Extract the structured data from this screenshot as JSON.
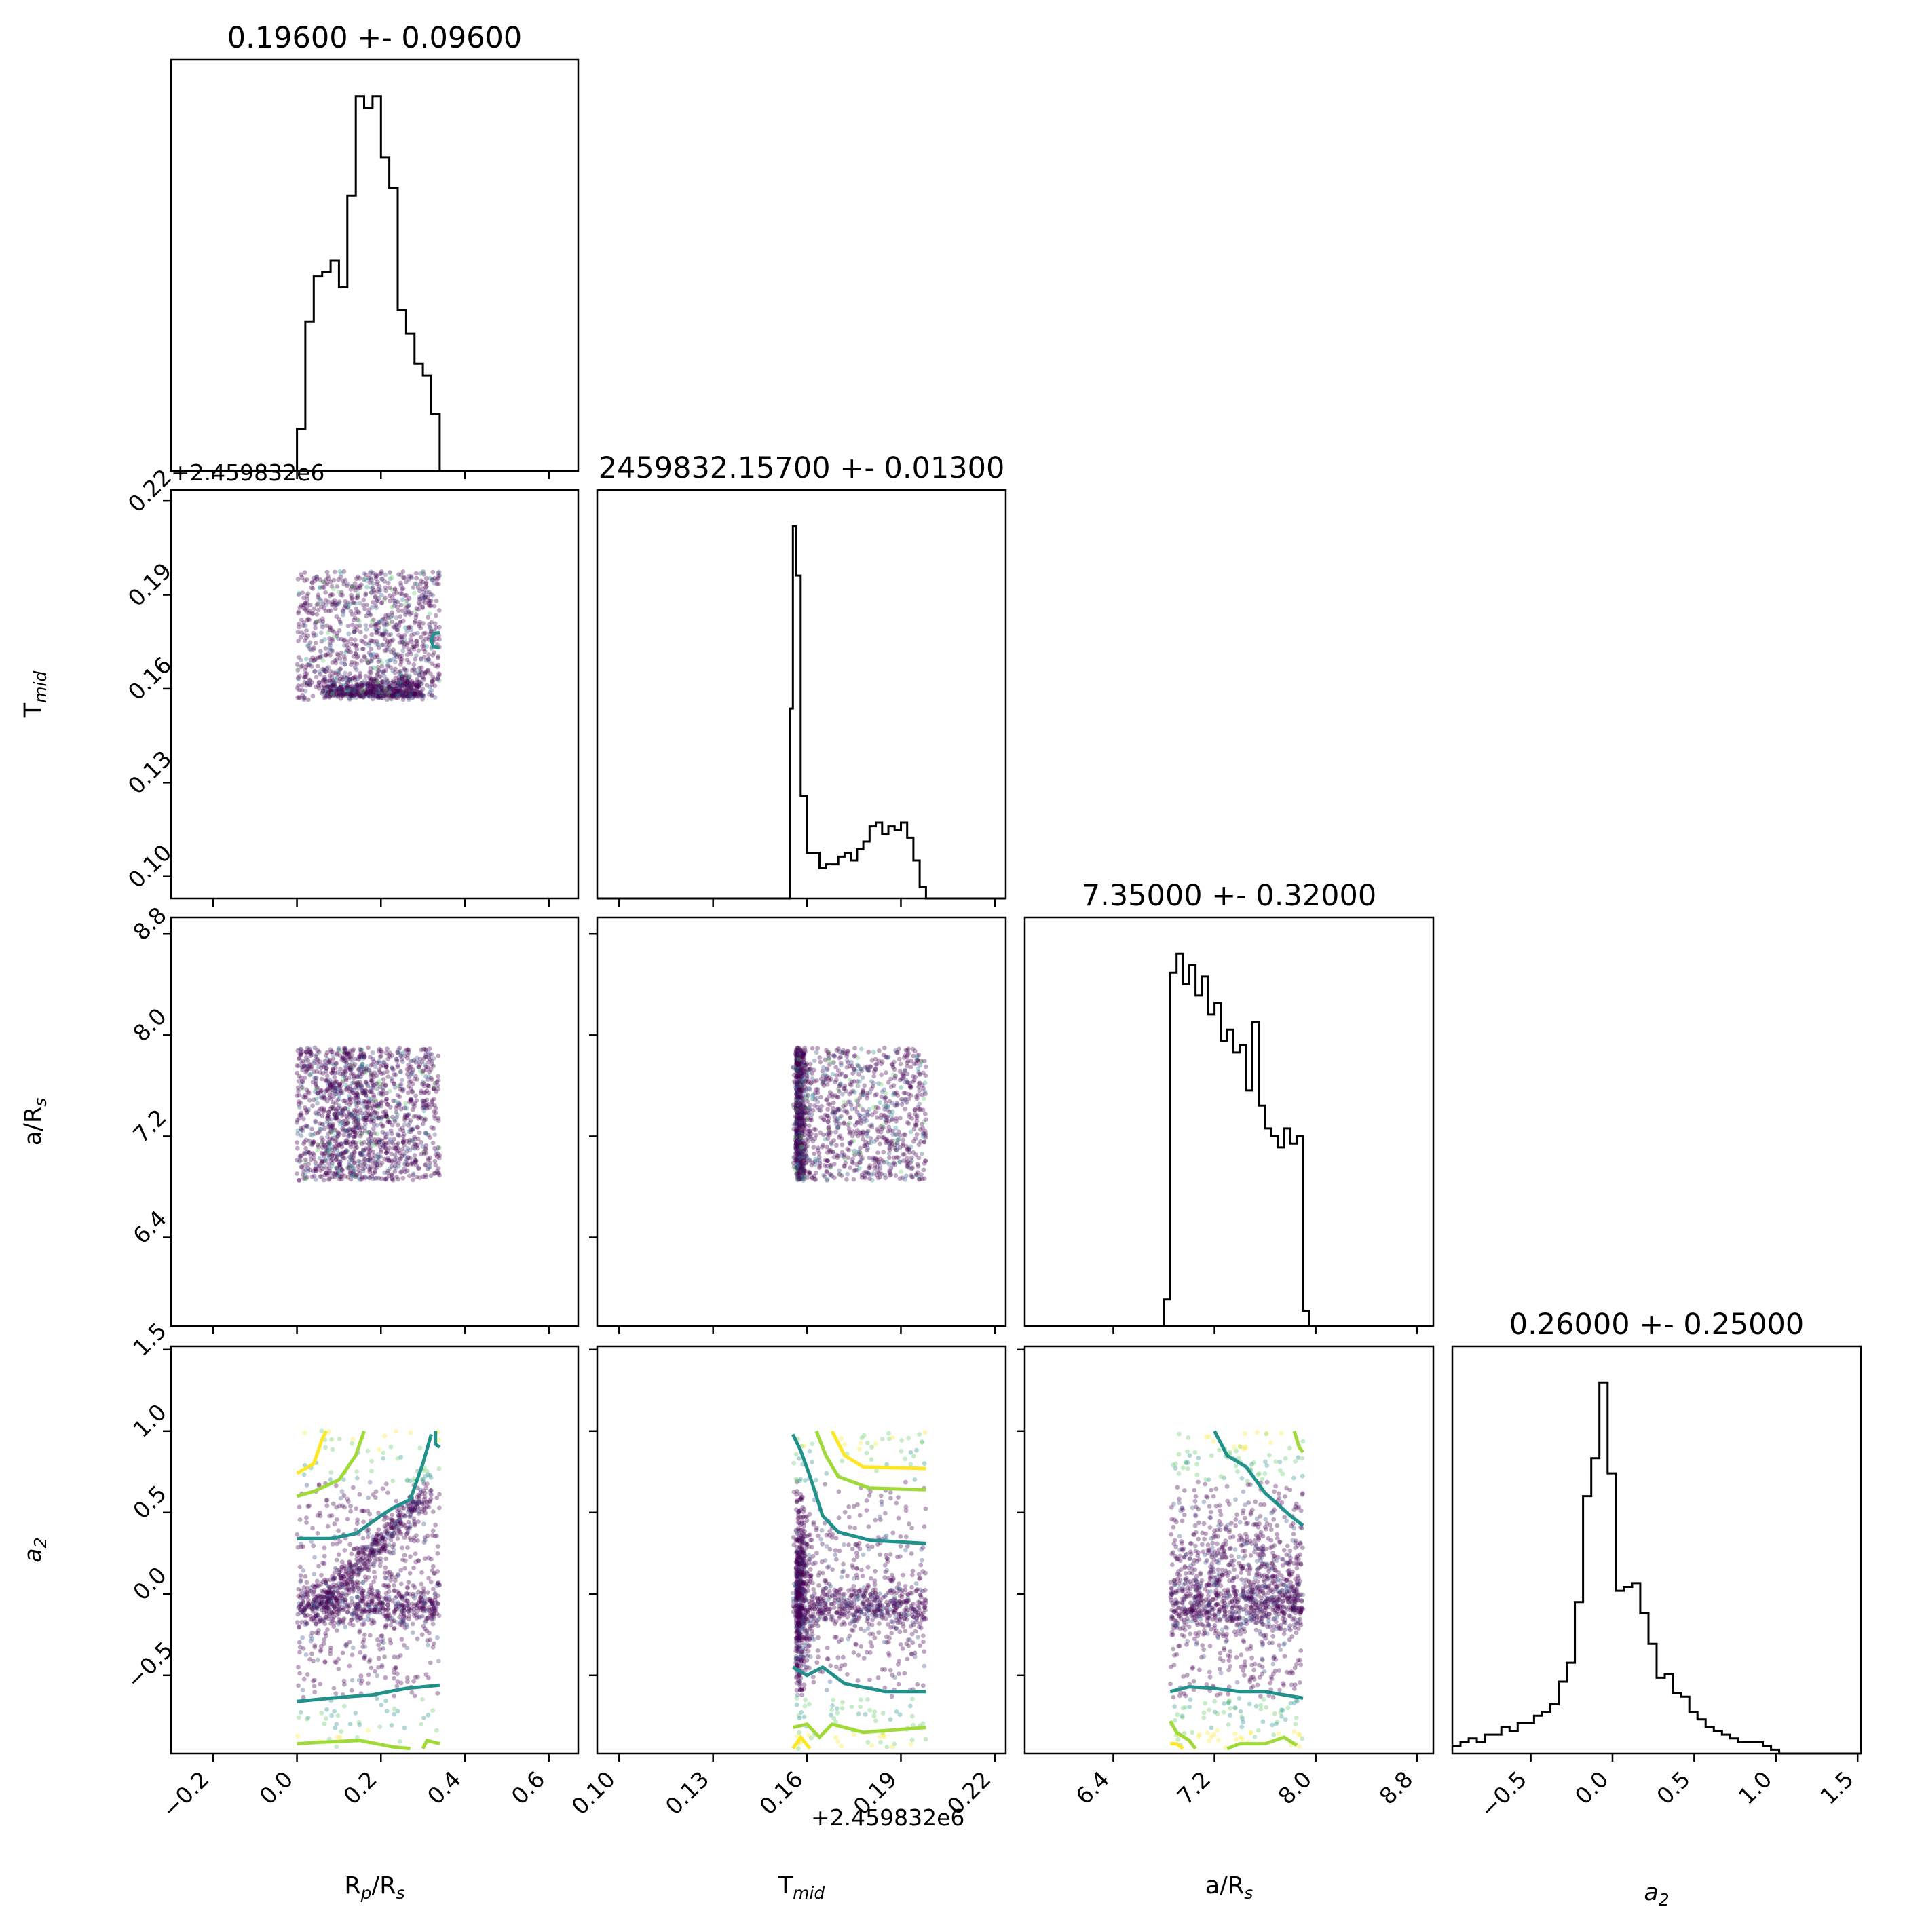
{
  "chart_data": {
    "type": "corner",
    "parameters": [
      {
        "key": "rp",
        "label_main": "R",
        "label_sub": "p",
        "label_tail": "/R",
        "label_sub2": "s",
        "title": "0.19600 +- 0.09600",
        "range": [
          -0.3,
          0.67
        ],
        "ticks": [
          -0.2,
          0.0,
          0.2,
          0.4,
          0.6
        ],
        "tick_labels": [
          "−0.2",
          "0.0",
          "0.2",
          "0.4",
          "0.6"
        ]
      },
      {
        "key": "tmid",
        "label_main": "T",
        "label_sub": "mid",
        "label_tail": "",
        "label_sub2": "",
        "title": "2459832.15700 +- 0.01300",
        "range": [
          0.093,
          0.2235
        ],
        "ticks": [
          0.1,
          0.13,
          0.16,
          0.19,
          0.22
        ],
        "tick_labels": [
          "0.10",
          "0.13",
          "0.16",
          "0.19",
          "0.22"
        ],
        "offset_text": "+2.459832e6"
      },
      {
        "key": "ars",
        "label_main": "a/R",
        "label_sub": "s",
        "label_tail": "",
        "label_sub2": "",
        "title": "7.35000 +- 0.32000",
        "range": [
          5.7,
          8.93
        ],
        "ticks": [
          6.4,
          7.2,
          8.0,
          8.8
        ],
        "tick_labels": [
          "6.4",
          "7.2",
          "8.0",
          "8.8"
        ]
      },
      {
        "key": "a2",
        "label_main": "a",
        "label_sub": "2",
        "label_tail": "",
        "label_sub2": "",
        "italic": true,
        "title": "0.26000 +- 0.25000",
        "range": [
          -0.98,
          1.52
        ],
        "ticks": [
          -0.5,
          0.0,
          0.5,
          1.0,
          1.5
        ],
        "tick_labels": [
          "−0.5",
          "0.0",
          "0.5",
          "1.0",
          "1.5"
        ]
      }
    ],
    "histograms": [
      {
        "param": 0,
        "bin_edges": [
          -0.3,
          0.0,
          0.02,
          0.04,
          0.06,
          0.08,
          0.1,
          0.12,
          0.14,
          0.16,
          0.18,
          0.2,
          0.22,
          0.24,
          0.26,
          0.28,
          0.3,
          0.32,
          0.34,
          0.67
        ],
        "counts": [
          0,
          0.11,
          0.39,
          0.51,
          0.52,
          0.55,
          0.48,
          0.72,
          0.98,
          0.95,
          0.98,
          0.82,
          0.74,
          0.42,
          0.36,
          0.28,
          0.25,
          0.15,
          0
        ]
      },
      {
        "param": 1,
        "bin_edges": [
          0.093,
          0.1545,
          0.1555,
          0.1565,
          0.158,
          0.16,
          0.162,
          0.164,
          0.166,
          0.168,
          0.17,
          0.172,
          0.174,
          0.176,
          0.178,
          0.18,
          0.182,
          0.184,
          0.186,
          0.188,
          0.19,
          0.192,
          0.194,
          0.196,
          0.198,
          0.2235
        ],
        "counts": [
          0,
          0.5,
          0.98,
          0.85,
          0.27,
          0.12,
          0.12,
          0.08,
          0.09,
          0.09,
          0.11,
          0.12,
          0.1,
          0.13,
          0.15,
          0.19,
          0.2,
          0.17,
          0.19,
          0.18,
          0.2,
          0.16,
          0.1,
          0.03,
          0
        ],
        "note_sizes": "scaled"
      },
      {
        "param": 2,
        "bin_edges": [
          5.7,
          6.8,
          6.85,
          6.9,
          6.95,
          7.0,
          7.05,
          7.1,
          7.15,
          7.2,
          7.25,
          7.3,
          7.35,
          7.4,
          7.45,
          7.5,
          7.55,
          7.6,
          7.65,
          7.7,
          7.75,
          7.8,
          7.85,
          7.9,
          7.95,
          8.93
        ],
        "counts": [
          0,
          0.07,
          0.93,
          0.98,
          0.9,
          0.95,
          0.87,
          0.92,
          0.82,
          0.85,
          0.75,
          0.78,
          0.72,
          0.74,
          0.62,
          0.8,
          0.58,
          0.52,
          0.5,
          0.47,
          0.52,
          0.48,
          0.5,
          0.04,
          0
        ]
      },
      {
        "param": 3,
        "bin_edges": [
          -0.98,
          -0.93,
          -0.88,
          -0.83,
          -0.78,
          -0.73,
          -0.68,
          -0.63,
          -0.58,
          -0.53,
          -0.48,
          -0.43,
          -0.38,
          -0.33,
          -0.28,
          -0.23,
          -0.18,
          -0.13,
          -0.08,
          -0.03,
          0.02,
          0.07,
          0.12,
          0.17,
          0.22,
          0.27,
          0.32,
          0.37,
          0.42,
          0.47,
          0.52,
          0.57,
          0.62,
          0.67,
          0.72,
          0.77,
          0.82,
          0.87,
          0.92,
          0.97,
          1.02,
          1.52
        ],
        "counts": [
          0.02,
          0.03,
          0.04,
          0.03,
          0.05,
          0.05,
          0.07,
          0.06,
          0.08,
          0.08,
          0.1,
          0.11,
          0.13,
          0.19,
          0.24,
          0.4,
          0.68,
          0.78,
          0.98,
          0.74,
          0.43,
          0.44,
          0.45,
          0.37,
          0.29,
          0.2,
          0.21,
          0.16,
          0.15,
          0.11,
          0.09,
          0.07,
          0.06,
          0.05,
          0.04,
          0.03,
          0.03,
          0.03,
          0.02,
          0.01,
          0
        ]
      }
    ],
    "scatter_clouds": [
      {
        "row": 1,
        "col": 0,
        "x_range": [
          0.0,
          0.34
        ],
        "y_range": [
          0.1565,
          0.1975
        ]
      },
      {
        "row": 2,
        "col": 0,
        "x_range": [
          0.0,
          0.34
        ],
        "y_range": [
          6.85,
          7.9
        ]
      },
      {
        "row": 2,
        "col": 1,
        "x_range": [
          0.1555,
          0.198
        ],
        "y_range": [
          6.85,
          7.9
        ]
      },
      {
        "row": 3,
        "col": 0,
        "x_range": [
          0.0,
          0.34
        ],
        "y_range": [
          -0.95,
          1.0
        ]
      },
      {
        "row": 3,
        "col": 1,
        "x_range": [
          0.1555,
          0.198
        ],
        "y_range": [
          -0.95,
          1.0
        ]
      },
      {
        "row": 3,
        "col": 2,
        "x_range": [
          6.85,
          7.9
        ],
        "y_range": [
          -0.95,
          1.0
        ]
      }
    ],
    "colormap": [
      "#440154",
      "#3b528b",
      "#21918c",
      "#5ec962",
      "#fde725"
    ],
    "contour_colors": {
      "inner": "#21918c",
      "mid": "#a0da39",
      "outer": "#fde725"
    },
    "hist_color": "#000000",
    "grid": false
  }
}
